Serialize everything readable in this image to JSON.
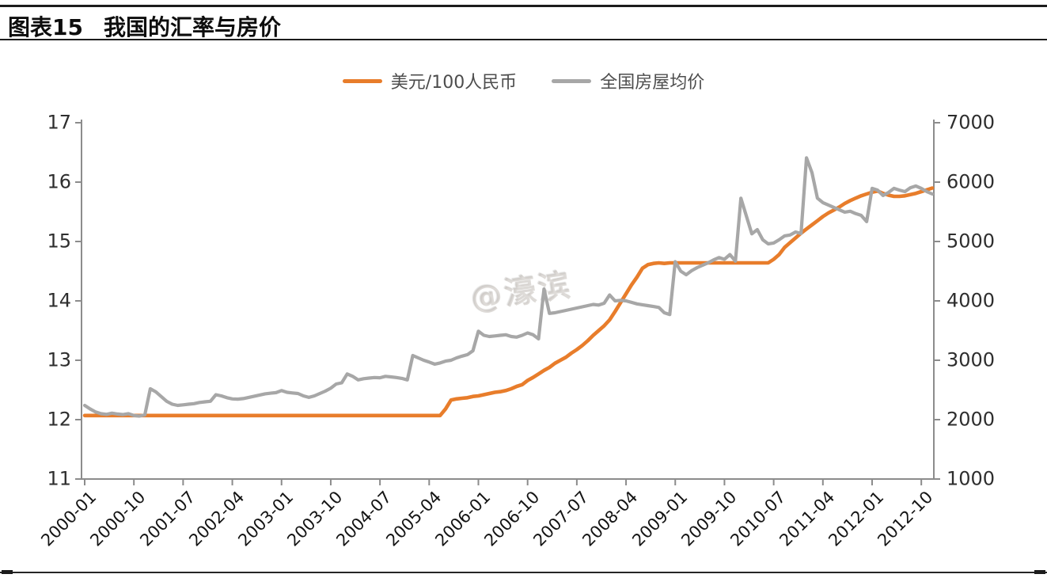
{
  "title": {
    "prefix": "图表15",
    "text": "我国的汇率与房价"
  },
  "watermark": "@濠滨",
  "chart_data": {
    "type": "line",
    "title": "图表15 我国的汇率与房价",
    "x_frequency": "monthly",
    "x_range": [
      "2000-01",
      "2012-12"
    ],
    "x_tick_step_months": 9,
    "x_tick_labels": [
      "2000-01",
      "2000-10",
      "2001-07",
      "2002-04",
      "2003-01",
      "2003-10",
      "2004-07",
      "2005-04",
      "2006-01",
      "2006-10",
      "2007-07",
      "2008-04",
      "2009-01",
      "2009-10",
      "2010-07",
      "2011-04",
      "2012-01",
      "2012-10"
    ],
    "left_axis": {
      "min": 11,
      "max": 17,
      "ticks": [
        17,
        16,
        15,
        14,
        13,
        12,
        11
      ]
    },
    "right_axis": {
      "min": 1000,
      "max": 7000,
      "ticks": [
        7000,
        6000,
        5000,
        4000,
        3000,
        2000,
        1000
      ]
    },
    "grid": false,
    "legend_position": "top-center",
    "legend": [
      {
        "name": "美元/100人民币",
        "color": "#E87D2B"
      },
      {
        "name": "全国房屋均价",
        "color": "#A7A7A7"
      }
    ],
    "series": [
      {
        "name": "美元/100人民币",
        "axis": "left",
        "color": "#E87D2B",
        "stroke_width": 4.6,
        "values": [
          12.07,
          12.07,
          12.07,
          12.07,
          12.07,
          12.07,
          12.07,
          12.07,
          12.07,
          12.07,
          12.07,
          12.07,
          12.07,
          12.07,
          12.07,
          12.07,
          12.07,
          12.07,
          12.07,
          12.07,
          12.07,
          12.07,
          12.07,
          12.07,
          12.07,
          12.07,
          12.07,
          12.07,
          12.07,
          12.07,
          12.07,
          12.07,
          12.07,
          12.07,
          12.07,
          12.07,
          12.07,
          12.07,
          12.07,
          12.07,
          12.07,
          12.07,
          12.07,
          12.07,
          12.07,
          12.07,
          12.07,
          12.07,
          12.07,
          12.07,
          12.07,
          12.07,
          12.07,
          12.07,
          12.07,
          12.07,
          12.07,
          12.07,
          12.07,
          12.07,
          12.07,
          12.07,
          12.07,
          12.07,
          12.07,
          12.07,
          12.18,
          12.33,
          12.35,
          12.36,
          12.37,
          12.39,
          12.4,
          12.42,
          12.44,
          12.46,
          12.47,
          12.49,
          12.52,
          12.56,
          12.59,
          12.66,
          12.71,
          12.77,
          12.83,
          12.88,
          12.95,
          13.0,
          13.05,
          13.12,
          13.18,
          13.25,
          13.33,
          13.42,
          13.5,
          13.58,
          13.68,
          13.82,
          13.97,
          14.12,
          14.27,
          14.4,
          14.55,
          14.61,
          14.63,
          14.64,
          14.63,
          14.64,
          14.64,
          14.64,
          14.64,
          14.64,
          14.64,
          14.64,
          14.64,
          14.64,
          14.64,
          14.64,
          14.64,
          14.64,
          14.64,
          14.64,
          14.64,
          14.64,
          14.64,
          14.64,
          14.7,
          14.78,
          14.9,
          14.98,
          15.06,
          15.14,
          15.21,
          15.28,
          15.35,
          15.42,
          15.48,
          15.53,
          15.58,
          15.64,
          15.69,
          15.73,
          15.77,
          15.8,
          15.83,
          15.85,
          15.81,
          15.78,
          15.76,
          15.76,
          15.77,
          15.79,
          15.81,
          15.84,
          15.87,
          15.9
        ]
      },
      {
        "name": "全国房屋均价",
        "axis": "right",
        "color": "#A7A7A7",
        "stroke_width": 4.2,
        "values": [
          2240,
          2180,
          2130,
          2100,
          2090,
          2110,
          2095,
          2085,
          2100,
          2070,
          2060,
          2080,
          2520,
          2470,
          2390,
          2310,
          2260,
          2240,
          2250,
          2260,
          2270,
          2290,
          2300,
          2310,
          2420,
          2400,
          2370,
          2350,
          2345,
          2355,
          2375,
          2395,
          2415,
          2435,
          2445,
          2455,
          2490,
          2460,
          2450,
          2440,
          2400,
          2375,
          2400,
          2440,
          2480,
          2530,
          2600,
          2620,
          2770,
          2730,
          2670,
          2690,
          2700,
          2710,
          2705,
          2730,
          2720,
          2710,
          2695,
          2670,
          3080,
          3040,
          3000,
          2970,
          2935,
          2955,
          2985,
          3000,
          3040,
          3070,
          3095,
          3160,
          3490,
          3420,
          3400,
          3410,
          3420,
          3430,
          3400,
          3390,
          3420,
          3460,
          3430,
          3360,
          4200,
          3790,
          3800,
          3820,
          3840,
          3860,
          3880,
          3900,
          3920,
          3940,
          3930,
          3960,
          4100,
          4000,
          4010,
          4000,
          3975,
          3950,
          3935,
          3920,
          3905,
          3890,
          3800,
          3770,
          4660,
          4500,
          4440,
          4510,
          4560,
          4600,
          4640,
          4690,
          4730,
          4700,
          4780,
          4670,
          5730,
          5430,
          5130,
          5200,
          5030,
          4960,
          4975,
          5030,
          5095,
          5110,
          5160,
          5135,
          6410,
          6160,
          5730,
          5655,
          5615,
          5575,
          5535,
          5495,
          5510,
          5470,
          5440,
          5335,
          5895,
          5865,
          5775,
          5825,
          5895,
          5865,
          5840,
          5905,
          5935,
          5895,
          5840,
          5800
        ]
      }
    ]
  }
}
